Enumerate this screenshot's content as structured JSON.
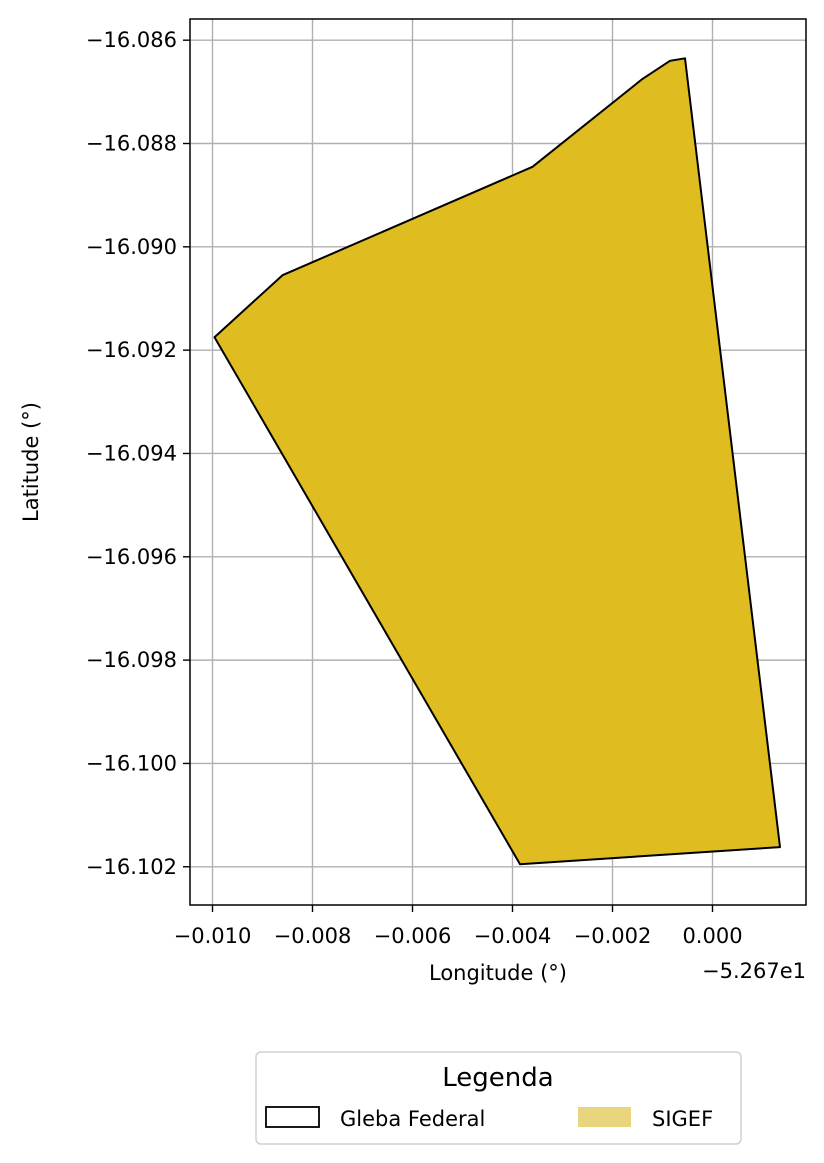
{
  "chart_data": {
    "type": "area",
    "xlabel": "Longitude (°)",
    "ylabel": "Latitude (°)",
    "x_offset_label": "−5.267e1",
    "xlim": [
      -0.01045,
      0.00187
    ],
    "ylim": [
      -16.10274,
      -16.08559
    ],
    "xticks": [
      -0.01,
      -0.008,
      -0.006,
      -0.004,
      -0.002,
      0.0
    ],
    "xtick_labels": [
      "−0.010",
      "−0.008",
      "−0.006",
      "−0.004",
      "−0.002",
      "0.000"
    ],
    "yticks": [
      -16.086,
      -16.088,
      -16.09,
      -16.092,
      -16.094,
      -16.096,
      -16.098,
      -16.1,
      -16.102
    ],
    "ytick_labels": [
      "−16.086",
      "−16.088",
      "−16.090",
      "−16.092",
      "−16.094",
      "−16.096",
      "−16.098",
      "−16.100",
      "−16.102"
    ],
    "grid": true,
    "series": [
      {
        "name": "SIGEF",
        "color": "#dfbc1f",
        "legend_color": "#e8d57e",
        "edge_color": "#000000",
        "polygon": [
          [
            -0.00996,
            -16.09175
          ],
          [
            -0.0086,
            -16.09055
          ],
          [
            -0.0036,
            -16.08845
          ],
          [
            -0.0014,
            -16.08675
          ],
          [
            -0.00085,
            -16.0864
          ],
          [
            -0.00055,
            -16.08635
          ],
          [
            0.00135,
            -16.10162
          ],
          [
            -0.00385,
            -16.10195
          ]
        ]
      },
      {
        "name": "Gleba Federal",
        "color": "none",
        "edge_color": "#000000"
      }
    ],
    "legend": {
      "title": "Legenda",
      "placement": "bottom-center",
      "entries": [
        "Gleba Federal",
        "SIGEF"
      ]
    }
  }
}
